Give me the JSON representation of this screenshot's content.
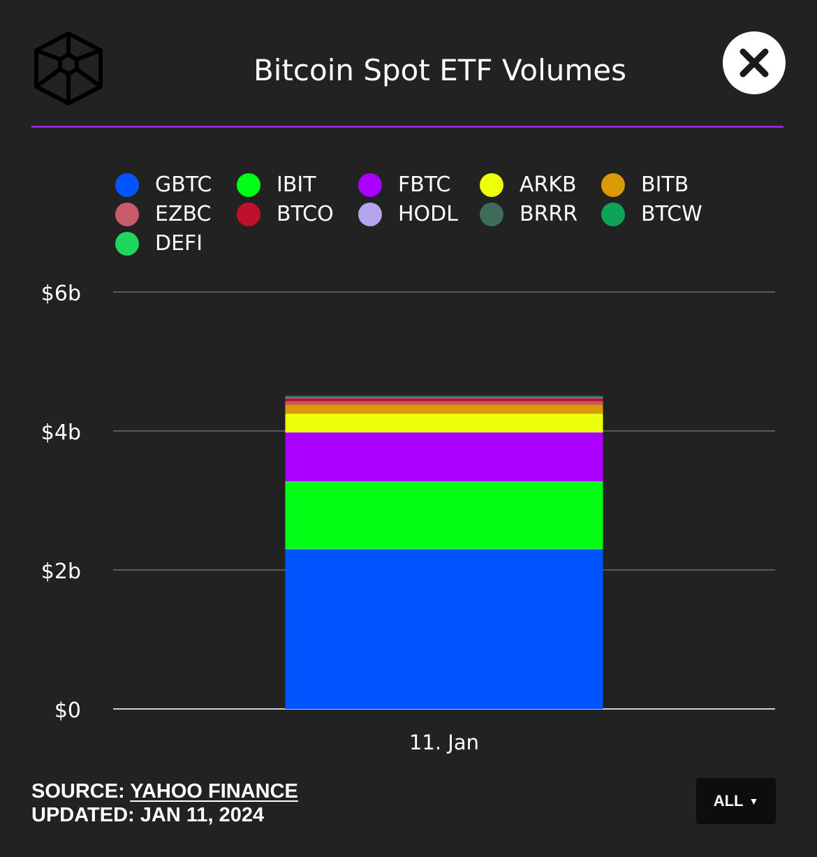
{
  "header": {
    "title": "Bitcoin Spot ETF Volumes",
    "logo_icon": "wireframe-cube-logo",
    "close_icon": "close-x-icon",
    "accent_color": "#9b1fd9"
  },
  "chart_data": {
    "type": "bar",
    "stacked": true,
    "categories": [
      "11. Jan"
    ],
    "yaxis": {
      "ticks": [
        {
          "value": 0,
          "label": "$0"
        },
        {
          "value": 2,
          "label": "$2b"
        },
        {
          "value": 4,
          "label": "$4b"
        },
        {
          "value": 6,
          "label": "$6b"
        }
      ],
      "ylim": [
        0,
        6
      ],
      "unit": "billion USD"
    },
    "grid": true,
    "legend_placement": "top",
    "series": [
      {
        "name": "GBTC",
        "color": "#0055ff",
        "values": [
          2.3
        ]
      },
      {
        "name": "IBIT",
        "color": "#00ff14",
        "values": [
          0.97
        ]
      },
      {
        "name": "FBTC",
        "color": "#aa00ff",
        "values": [
          0.71
        ]
      },
      {
        "name": "ARKB",
        "color": "#eeff0c",
        "values": [
          0.27
        ]
      },
      {
        "name": "BITB",
        "color": "#da9a06",
        "values": [
          0.13
        ]
      },
      {
        "name": "EZBC",
        "color": "#c85a6c",
        "values": [
          0.05
        ]
      },
      {
        "name": "BTCO",
        "color": "#c1102c",
        "values": [
          0.04
        ]
      },
      {
        "name": "HODL",
        "color": "#b5a4ee",
        "values": [
          0.01
        ]
      },
      {
        "name": "BRRR",
        "color": "#3e6c58",
        "values": [
          0.02
        ]
      },
      {
        "name": "BTCW",
        "color": "#0fa35a",
        "values": [
          0.005
        ]
      },
      {
        "name": "DEFI",
        "color": "#1fd65d",
        "values": [
          0.001
        ]
      }
    ]
  },
  "footer": {
    "source_label": "SOURCE:",
    "source_link": "YAHOO FINANCE",
    "updated_label": "UPDATED:",
    "updated_value": "JAN 11, 2024"
  },
  "range_select": {
    "value": "ALL",
    "arrow_icon": "caret-down-icon"
  }
}
